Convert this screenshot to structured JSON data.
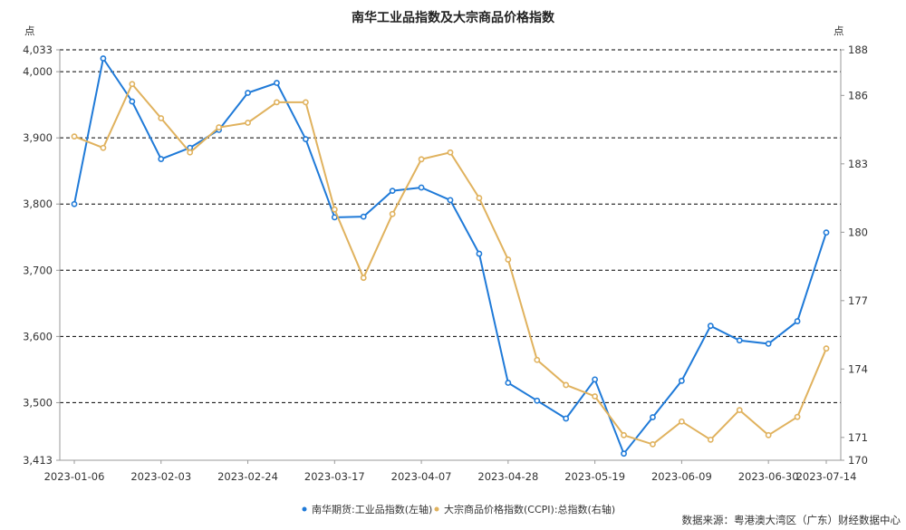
{
  "colors": {
    "series_left": "#1f7ad8",
    "series_right": "#e0b25e",
    "grid": "#000000",
    "axis": "#999999"
  },
  "chart_data": {
    "type": "line",
    "title": "南华工业品指数及大宗商品价格指数",
    "left_unit": "点",
    "right_unit": "点",
    "source": "数据来源：粤港澳大湾区（广东）财经数据中心",
    "x_tick_labels": [
      "2023-01-06",
      "2023-02-03",
      "2023-02-24",
      "2023-03-17",
      "2023-04-07",
      "2023-04-28",
      "2023-05-19",
      "2023-06-09",
      "2023-06-30",
      "2023-07-14"
    ],
    "x_tick_positions": [
      0,
      3,
      6,
      9,
      12,
      15,
      18,
      21,
      24,
      26
    ],
    "x_count": 27,
    "y_left": {
      "min": 3413,
      "max": 4033,
      "ticks": [
        3413,
        3500,
        3600,
        3700,
        3800,
        3900,
        4000,
        4033
      ]
    },
    "y_right": {
      "min": 170,
      "max": 188,
      "ticks": [
        170,
        171,
        174,
        177,
        180,
        183,
        186,
        188
      ]
    },
    "grid_at_left_values": [
      3500,
      3600,
      3700,
      3800,
      3900,
      4000,
      4033
    ],
    "series": [
      {
        "name": "南华期货:工业品指数(左轴)",
        "axis": "left",
        "values": [
          3800,
          4020,
          3955,
          3868,
          3885,
          3912,
          3968,
          3983,
          3898,
          3780,
          3781,
          3820,
          3825,
          3806,
          3725,
          3530,
          3503,
          3476,
          3535,
          3423,
          3478,
          3533,
          3616,
          3594,
          3589,
          3623,
          3757
        ]
      },
      {
        "name": "大宗商品价格指数(CCPI):总指数(右轴)",
        "axis": "right",
        "values": [
          184.2,
          183.7,
          186.5,
          185.0,
          183.5,
          184.6,
          184.8,
          185.7,
          185.7,
          181.0,
          178.0,
          180.8,
          183.2,
          183.5,
          181.5,
          178.8,
          174.4,
          173.3,
          172.8,
          171.1,
          170.7,
          171.7,
          170.9,
          172.2,
          171.1,
          171.9,
          174.9
        ]
      }
    ]
  }
}
